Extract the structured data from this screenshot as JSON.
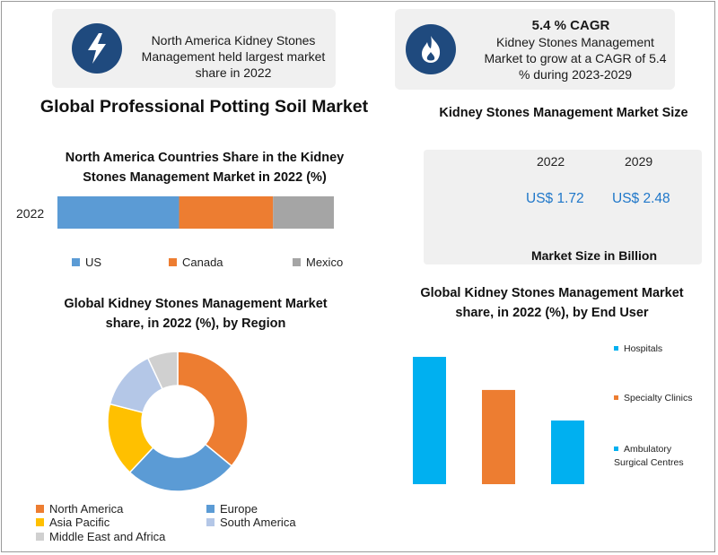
{
  "top_left_card": {
    "text": "North America Kidney Stones Management held largest market share in 2022"
  },
  "top_right_card": {
    "heading": "5.4 % CAGR",
    "text": "Kidney Stones Management Market to grow at a CAGR of 5.4 % during 2023-2029"
  },
  "main_title": "Global Professional Potting Soil Market",
  "market_size": {
    "title": "Kidney Stones Management Market Size",
    "years": [
      "2022",
      "2029"
    ],
    "values": [
      "US$ 1.72",
      "US$ 2.48"
    ],
    "footer": "Market Size in Billion"
  },
  "colors": {
    "navy": "#1f4a7e",
    "blue": "#5b9bd5",
    "orange": "#ed7d31",
    "gray": "#a5a5a5",
    "yellow": "#ffc000",
    "light_blue": "#b4c7e7",
    "light_gray": "#d0d0d0",
    "cyan": "#00b0f0",
    "value_blue": "#1f77c9"
  },
  "chart_data": [
    {
      "type": "bar",
      "orientation": "horizontal-stacked",
      "title": "North America Countries Share in the Kidney Stones Management  Market in 2022 (%)",
      "categories": [
        "2022"
      ],
      "series": [
        {
          "name": "US",
          "values": [
            44
          ],
          "color": "#5b9bd5"
        },
        {
          "name": "Canada",
          "values": [
            34
          ],
          "color": "#ed7d31"
        },
        {
          "name": "Mexico",
          "values": [
            22
          ],
          "color": "#a5a5a5"
        }
      ],
      "legend": "bottom"
    },
    {
      "type": "pie",
      "style": "donut",
      "title": "Global Kidney Stones Management Market share, in 2022 (%), by Region",
      "labels": [
        "North America",
        "Europe",
        "Asia Pacific",
        "South America",
        "Middle East and Africa"
      ],
      "values": [
        36,
        26,
        17,
        14,
        7
      ],
      "colors": [
        "#ed7d31",
        "#5b9bd5",
        "#ffc000",
        "#b4c7e7",
        "#d0d0d0"
      ],
      "legend": "bottom"
    },
    {
      "type": "bar",
      "title": "Global Kidney Stones Management Market share, in 2022 (%), by End User",
      "categories": [
        "Hospitals",
        "Specialty Clinics",
        "Ambulatory Surgical Centres"
      ],
      "values": [
        50,
        37,
        25
      ],
      "colors": [
        "#00b0f0",
        "#ed7d31",
        "#00b0f0"
      ],
      "ylim": [
        0,
        50
      ],
      "legend": "right"
    }
  ]
}
